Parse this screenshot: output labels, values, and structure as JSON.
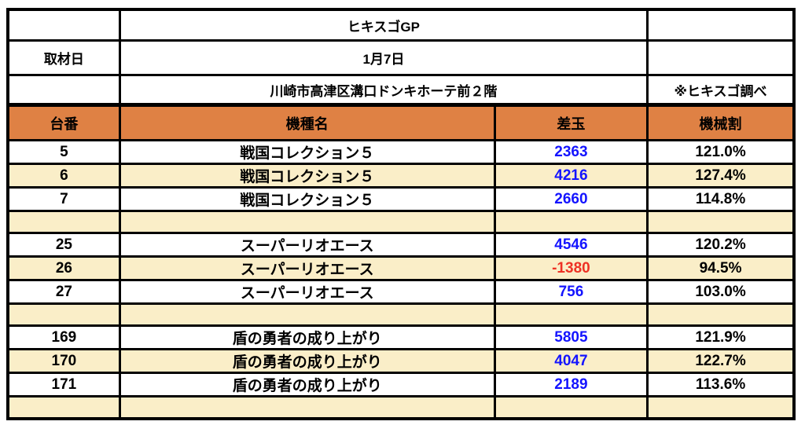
{
  "colors": {
    "header_bg": "#DF8144",
    "row_alt_bg": "#FAEEC8",
    "positive_value": "#1414FF",
    "negative_value": "#EE3124",
    "border": "#000000"
  },
  "top": {
    "title": "ヒキスゴGP",
    "date_label": "取材日",
    "date_value": "1月7日",
    "location": "川崎市高津区溝口ドンキホーテ前２階",
    "source_note": "※ヒキスゴ調べ"
  },
  "table": {
    "headers": [
      "台番",
      "機種名",
      "差玉",
      "機械割"
    ],
    "rows": [
      {
        "dai": "5",
        "model": "戦国コレクション５",
        "diff": "2363",
        "rate": "121.0%"
      },
      {
        "dai": "6",
        "model": "戦国コレクション５",
        "diff": "4216",
        "rate": "127.4%"
      },
      {
        "dai": "7",
        "model": "戦国コレクション５",
        "diff": "2660",
        "rate": "114.8%"
      },
      {
        "dai": "",
        "model": "",
        "diff": "",
        "rate": ""
      },
      {
        "dai": "25",
        "model": "スーパーリオエース",
        "diff": "4546",
        "rate": "120.2%"
      },
      {
        "dai": "26",
        "model": "スーパーリオエース",
        "diff": "-1380",
        "rate": "94.5%"
      },
      {
        "dai": "27",
        "model": "スーパーリオエース",
        "diff": "756",
        "rate": "103.0%"
      },
      {
        "dai": "",
        "model": "",
        "diff": "",
        "rate": ""
      },
      {
        "dai": "169",
        "model": "盾の勇者の成り上がり",
        "diff": "5805",
        "rate": "121.9%"
      },
      {
        "dai": "170",
        "model": "盾の勇者の成り上がり",
        "diff": "4047",
        "rate": "122.7%"
      },
      {
        "dai": "171",
        "model": "盾の勇者の成り上がり",
        "diff": "2189",
        "rate": "113.6%"
      },
      {
        "dai": "",
        "model": "",
        "diff": "",
        "rate": ""
      }
    ]
  }
}
